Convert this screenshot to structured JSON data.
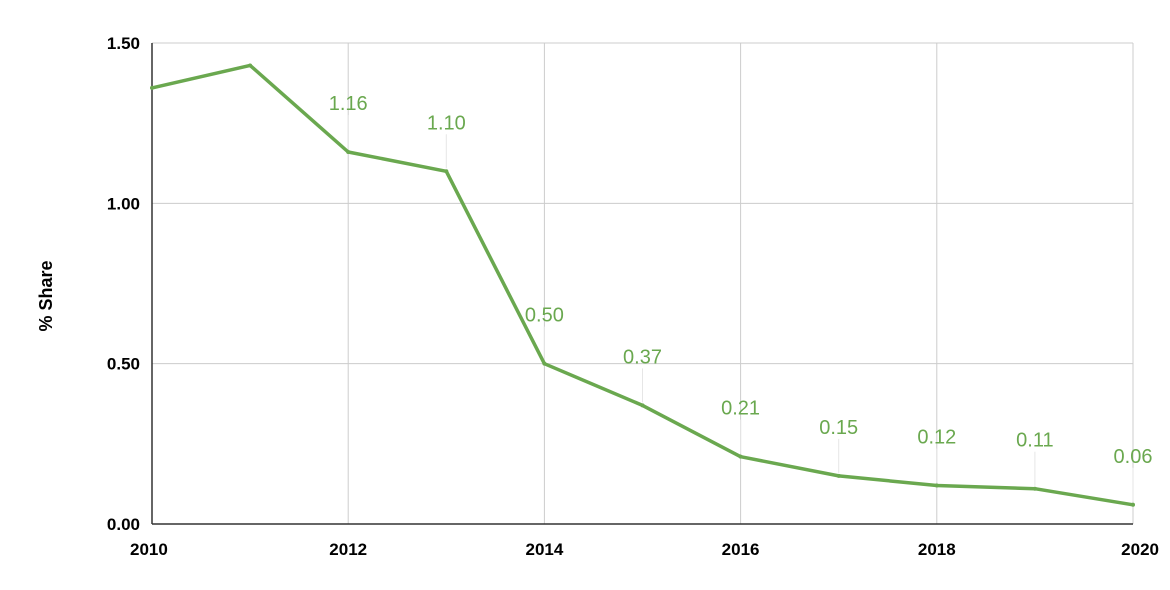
{
  "chart_data": {
    "type": "line",
    "title": "",
    "xlabel": "",
    "ylabel": "% Share",
    "x": [
      2010,
      2011,
      2012,
      2013,
      2014,
      2015,
      2016,
      2017,
      2018,
      2019,
      2020
    ],
    "series": [
      {
        "values": [
          1.36,
          1.43,
          1.16,
          1.1,
          0.5,
          0.37,
          0.21,
          0.15,
          0.12,
          0.11,
          0.06
        ],
        "color": "#6aa84f"
      }
    ],
    "data_labels": [
      {
        "x": 2012,
        "text": "1.16"
      },
      {
        "x": 2013,
        "text": "1.10"
      },
      {
        "x": 2014,
        "text": "0.50"
      },
      {
        "x": 2015,
        "text": "0.37"
      },
      {
        "x": 2016,
        "text": "0.21"
      },
      {
        "x": 2017,
        "text": "0.15"
      },
      {
        "x": 2018,
        "text": "0.12"
      },
      {
        "x": 2019,
        "text": "0.11"
      },
      {
        "x": 2020,
        "text": "0.06"
      }
    ],
    "xlim": [
      2010,
      2020
    ],
    "ylim": [
      0,
      1.5
    ],
    "x_ticks": [
      "2010",
      "2012",
      "2014",
      "2016",
      "2018",
      "2020"
    ],
    "y_ticks": [
      "0.00",
      "0.50",
      "1.00",
      "1.50"
    ],
    "grid": true,
    "legend": "none"
  }
}
